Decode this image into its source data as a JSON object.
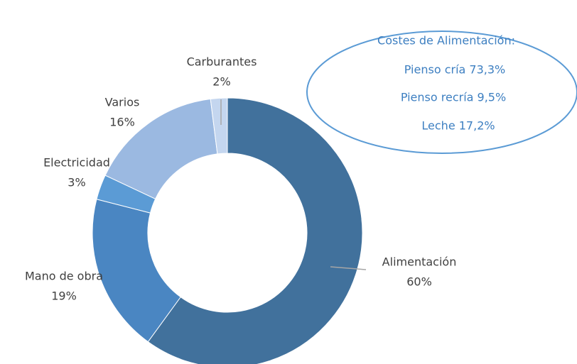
{
  "chart_data": {
    "type": "pie",
    "categories": [
      "Alimentación",
      "Mano de obra",
      "Electricidad",
      "Varios",
      "Carburantes"
    ],
    "values": [
      60,
      19,
      3,
      16,
      2
    ],
    "value_labels": [
      "60%",
      "19%",
      "3%",
      "16%",
      "2%"
    ],
    "colors": [
      "#41719c",
      "#4a86c2",
      "#5b9bd5",
      "#9bb9e1",
      "#c4d6ef"
    ],
    "donut": true,
    "annotations": [
      "Costes de Alimentación:",
      "Pienso cría 73,3%",
      "Pienso recría 9,5%",
      "Leche 17,2%"
    ]
  }
}
